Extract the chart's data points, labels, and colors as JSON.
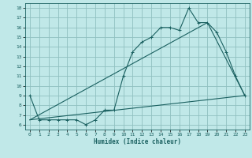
{
  "xlabel": "Humidex (Indice chaleur)",
  "bg_color": "#c0e8e8",
  "grid_color": "#90c0c0",
  "line_color": "#1a6060",
  "xlim": [
    -0.5,
    23.5
  ],
  "ylim": [
    5.5,
    18.5
  ],
  "yticks": [
    6,
    7,
    8,
    9,
    10,
    11,
    12,
    13,
    14,
    15,
    16,
    17,
    18
  ],
  "xticks": [
    0,
    1,
    2,
    3,
    4,
    5,
    6,
    7,
    8,
    9,
    10,
    11,
    12,
    13,
    14,
    15,
    16,
    17,
    18,
    19,
    20,
    21,
    22,
    23
  ],
  "line1_x": [
    0,
    1,
    2,
    3,
    4,
    5,
    6,
    7,
    8,
    9,
    10,
    11,
    12,
    13,
    14,
    15,
    16,
    17,
    18,
    19,
    20,
    21,
    22,
    23
  ],
  "line1_y": [
    9.0,
    6.5,
    6.5,
    6.5,
    6.5,
    6.5,
    6.0,
    6.5,
    7.5,
    7.5,
    11.0,
    13.5,
    14.5,
    15.0,
    16.0,
    16.0,
    15.7,
    18.0,
    16.5,
    16.5,
    15.5,
    13.5,
    11.0,
    9.0
  ],
  "line2_x": [
    0,
    23
  ],
  "line2_y": [
    6.5,
    9.0
  ],
  "line3_x": [
    0,
    19,
    23
  ],
  "line3_y": [
    6.5,
    16.5,
    9.0
  ]
}
